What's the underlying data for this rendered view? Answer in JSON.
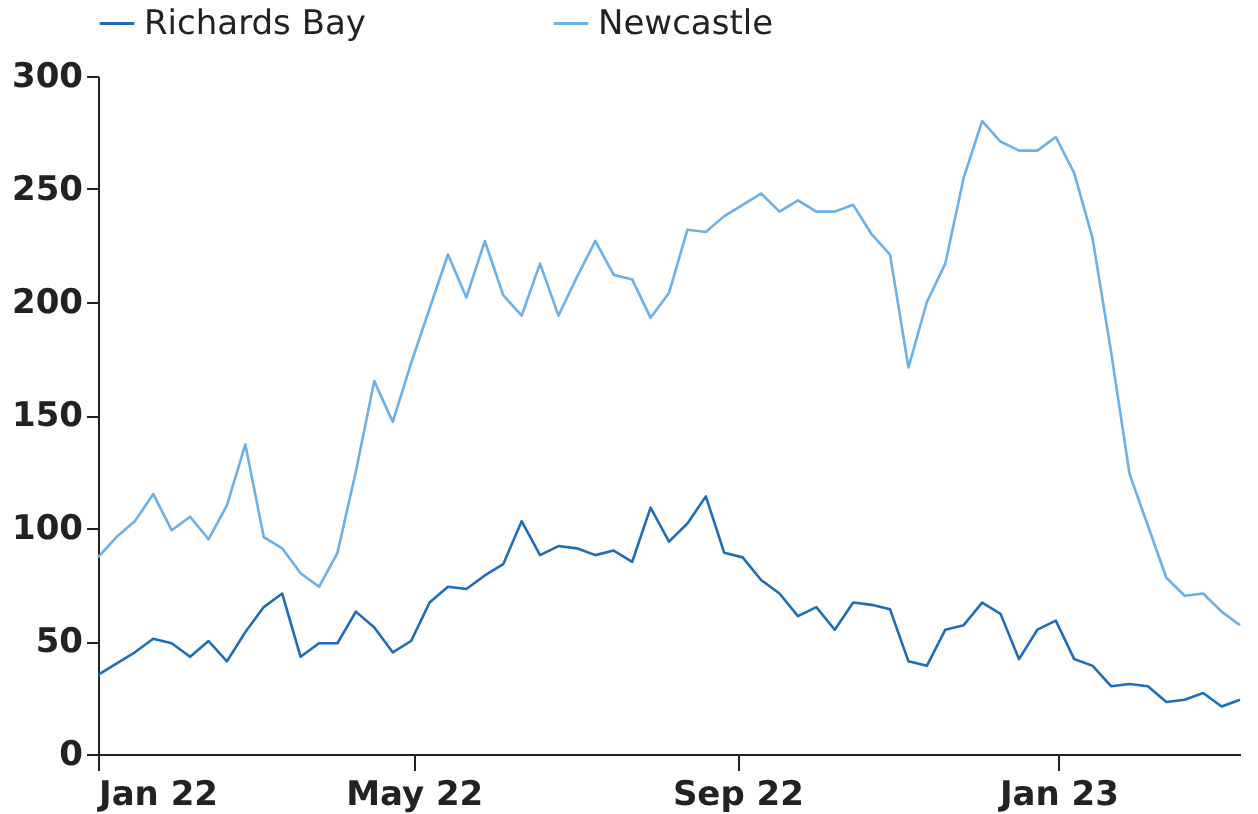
{
  "chart_data": {
    "type": "line",
    "x": [
      "2022-01-01",
      "2022-01-08",
      "2022-01-15",
      "2022-01-22",
      "2022-01-29",
      "2022-02-05",
      "2022-02-12",
      "2022-02-19",
      "2022-02-26",
      "2022-03-05",
      "2022-03-12",
      "2022-03-19",
      "2022-03-26",
      "2022-04-02",
      "2022-04-09",
      "2022-04-16",
      "2022-04-23",
      "2022-04-30",
      "2022-05-07",
      "2022-05-14",
      "2022-05-21",
      "2022-05-28",
      "2022-06-04",
      "2022-06-11",
      "2022-06-18",
      "2022-06-25",
      "2022-07-02",
      "2022-07-09",
      "2022-07-16",
      "2022-07-23",
      "2022-07-30",
      "2022-08-06",
      "2022-08-13",
      "2022-08-20",
      "2022-08-27",
      "2022-09-03",
      "2022-09-10",
      "2022-09-17",
      "2022-09-24",
      "2022-10-01",
      "2022-10-08",
      "2022-10-15",
      "2022-10-22",
      "2022-10-29",
      "2022-11-05",
      "2022-11-12",
      "2022-11-19",
      "2022-11-26",
      "2022-12-03",
      "2022-12-10",
      "2022-12-17",
      "2022-12-24",
      "2022-12-31",
      "2023-01-07",
      "2023-01-14",
      "2023-01-21",
      "2023-01-28",
      "2023-02-04",
      "2023-02-11",
      "2023-02-18",
      "2023-02-25",
      "2023-03-04",
      "2023-03-11"
    ],
    "series": [
      {
        "name": "Richards Bay",
        "color": "#1f6db5",
        "values": [
          35,
          40,
          45,
          51,
          49,
          43,
          50,
          41,
          54,
          65,
          71,
          43,
          49,
          49,
          63,
          56,
          45,
          50,
          67,
          74,
          73,
          79,
          84,
          103,
          88,
          92,
          91,
          88,
          90,
          85,
          109,
          94,
          102,
          114,
          89,
          87,
          77,
          71,
          61,
          65,
          55,
          67,
          66,
          64,
          41,
          39,
          55,
          57,
          67,
          62,
          42,
          55,
          59,
          42,
          39,
          30,
          31,
          30,
          23,
          24,
          27,
          21,
          24
        ]
      },
      {
        "name": "Newcastle",
        "color": "#6cb0e6",
        "values": [
          87,
          96,
          103,
          115,
          99,
          105,
          95,
          110,
          137,
          96,
          91,
          80,
          74,
          89,
          125,
          165,
          147,
          173,
          197,
          221,
          202,
          227,
          203,
          194,
          217,
          194,
          211,
          227,
          212,
          210,
          193,
          204,
          232,
          231,
          238,
          243,
          248,
          240,
          245,
          240,
          240,
          243,
          230,
          221,
          171,
          200,
          217,
          255,
          280,
          271,
          267,
          267,
          273,
          257,
          228,
          178,
          124,
          101,
          78,
          70,
          71,
          63,
          57
        ]
      }
    ],
    "xlim": [
      "2022-01-01",
      "2023-03-11"
    ],
    "xticks": [
      {
        "value": "2022-01-01",
        "label": "Jan 22"
      },
      {
        "value": "2022-05-01",
        "label": "May 22"
      },
      {
        "value": "2022-09-01",
        "label": "Sep 22"
      },
      {
        "value": "2023-01-01",
        "label": "Jan 23"
      }
    ],
    "ylim": [
      0,
      300
    ],
    "yticks": [
      0,
      50,
      100,
      150,
      200,
      250,
      300
    ],
    "grid": false,
    "legend": "top",
    "marker": "none",
    "line_style": "solid"
  }
}
